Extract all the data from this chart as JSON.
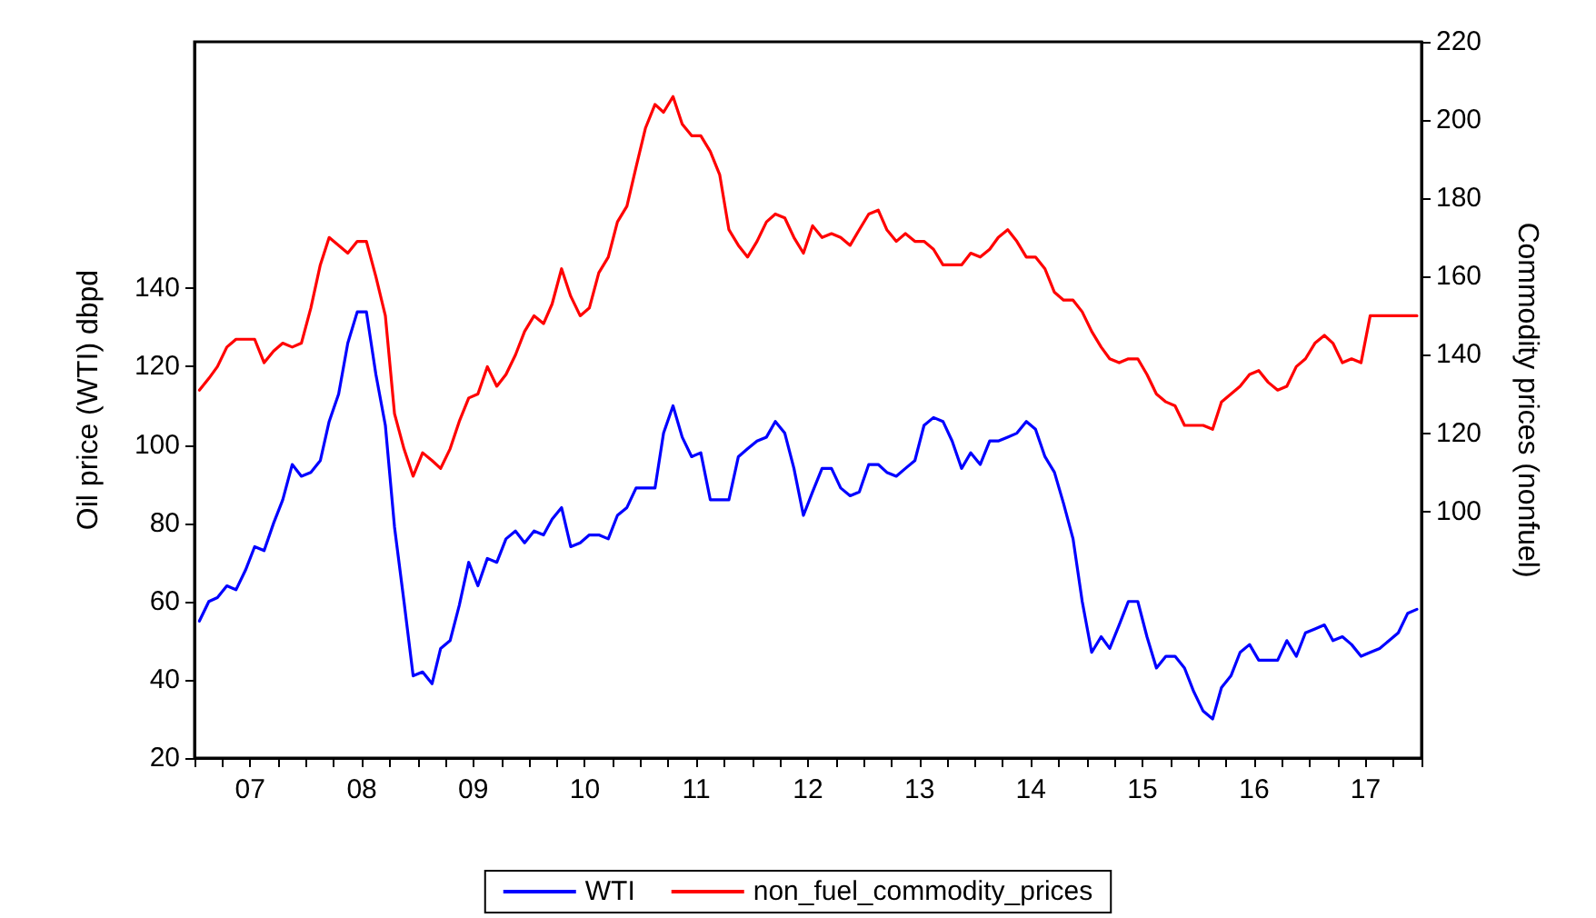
{
  "chart_data": {
    "type": "line",
    "xlabel": null,
    "ylabel": "Oil price (WTI) dbpd",
    "y2label": "Commodity prices (nonfuel)",
    "x": [
      "2007-01",
      "2007-02",
      "2007-03",
      "2007-04",
      "2007-05",
      "2007-06",
      "2007-07",
      "2007-08",
      "2007-09",
      "2007-10",
      "2007-11",
      "2007-12",
      "2008-01",
      "2008-02",
      "2008-03",
      "2008-04",
      "2008-05",
      "2008-06",
      "2008-07",
      "2008-08",
      "2008-09",
      "2008-10",
      "2008-11",
      "2008-12",
      "2009-01",
      "2009-02",
      "2009-03",
      "2009-04",
      "2009-05",
      "2009-06",
      "2009-07",
      "2009-08",
      "2009-09",
      "2009-10",
      "2009-11",
      "2009-12",
      "2010-01",
      "2010-02",
      "2010-03",
      "2010-04",
      "2010-05",
      "2010-06",
      "2010-07",
      "2010-08",
      "2010-09",
      "2010-10",
      "2010-11",
      "2010-12",
      "2011-01",
      "2011-02",
      "2011-03",
      "2011-04",
      "2011-05",
      "2011-06",
      "2011-07",
      "2011-08",
      "2011-09",
      "2011-10",
      "2011-11",
      "2011-12",
      "2012-01",
      "2012-02",
      "2012-03",
      "2012-04",
      "2012-05",
      "2012-06",
      "2012-07",
      "2012-08",
      "2012-09",
      "2012-10",
      "2012-11",
      "2012-12",
      "2013-01",
      "2013-02",
      "2013-03",
      "2013-04",
      "2013-05",
      "2013-06",
      "2013-07",
      "2013-08",
      "2013-09",
      "2013-10",
      "2013-11",
      "2013-12",
      "2014-01",
      "2014-02",
      "2014-03",
      "2014-04",
      "2014-05",
      "2014-06",
      "2014-07",
      "2014-08",
      "2014-09",
      "2014-10",
      "2014-11",
      "2014-12",
      "2015-01",
      "2015-02",
      "2015-03",
      "2015-04",
      "2015-05",
      "2015-06",
      "2015-07",
      "2015-08",
      "2015-09",
      "2015-10",
      "2015-11",
      "2015-12",
      "2016-01",
      "2016-02",
      "2016-03",
      "2016-04",
      "2016-05",
      "2016-06",
      "2016-07",
      "2016-08",
      "2016-09",
      "2016-10",
      "2016-11",
      "2016-12",
      "2017-01",
      "2017-02",
      "2017-03",
      "2017-04",
      "2017-05",
      "2017-06",
      "2017-07",
      "2017-08",
      "2017-09",
      "2017-10",
      "2017-11",
      "2017-12"
    ],
    "series": [
      {
        "name": "WTI",
        "color": "#0000ff",
        "values": [
          55,
          60,
          61,
          64,
          63,
          68,
          74,
          73,
          80,
          86,
          95,
          92,
          93,
          96,
          106,
          113,
          126,
          134,
          134,
          118,
          105,
          79,
          60,
          41,
          42,
          39,
          48,
          50,
          59,
          70,
          64,
          71,
          70,
          76,
          78,
          75,
          78,
          77,
          81,
          84,
          74,
          75,
          77,
          77,
          76,
          82,
          84,
          89,
          89,
          89,
          103,
          110,
          102,
          97,
          98,
          86,
          86,
          86,
          97,
          99,
          101,
          102,
          106,
          103,
          94,
          82,
          88,
          94,
          94,
          89,
          87,
          88,
          95,
          95,
          93,
          92,
          94,
          96,
          105,
          107,
          106,
          101,
          94,
          98,
          95,
          101,
          101,
          102,
          103,
          106,
          104,
          97,
          93,
          85,
          76,
          60,
          47,
          51,
          48,
          54,
          60,
          60,
          51,
          43,
          46,
          46,
          43,
          37,
          32,
          30,
          38,
          41,
          47,
          49,
          45,
          45,
          45,
          50,
          46,
          52,
          53,
          54,
          50,
          51,
          49,
          46,
          47,
          48,
          50,
          52,
          57,
          58
        ]
      },
      {
        "name": "non_fuel_commodity_prices",
        "color": "#ff0000",
        "axis": "y2",
        "values": [
          131,
          134,
          137,
          142,
          144,
          144,
          144,
          138,
          141,
          143,
          142,
          143,
          152,
          163,
          170,
          168,
          166,
          169,
          169,
          160,
          150,
          125,
          116,
          109,
          115,
          113,
          111,
          116,
          123,
          129,
          130,
          137,
          132,
          135,
          140,
          146,
          150,
          148,
          153,
          162,
          155,
          150,
          152,
          161,
          165,
          174,
          178,
          188,
          198,
          204,
          202,
          206,
          199,
          196,
          196,
          192,
          186,
          172,
          168,
          165,
          169,
          174,
          176,
          175,
          170,
          166,
          173,
          170,
          171,
          170,
          168,
          172,
          176,
          177,
          172,
          169,
          171,
          169,
          169,
          167,
          163,
          163,
          163,
          166,
          165,
          167,
          170,
          172,
          169,
          165,
          165,
          162,
          156,
          154,
          154,
          151,
          146,
          142,
          139,
          138,
          139,
          139,
          135,
          130,
          128,
          127,
          122,
          122,
          122,
          121,
          128,
          130,
          132,
          135,
          136,
          133,
          131,
          132,
          137,
          139,
          143,
          145,
          143,
          138,
          139,
          138,
          150,
          150,
          150,
          150,
          150,
          150
        ]
      }
    ],
    "xlim": [
      "2006-12-16",
      "2017-12-16"
    ],
    "xticks": [
      {
        "value": "2006-12-16",
        "label": null
      },
      {
        "value": "2007-03-16",
        "label": null
      },
      {
        "value": "2007-06-16",
        "label": "07"
      },
      {
        "value": "2007-09-16",
        "label": null
      },
      {
        "value": "2007-12-16",
        "label": null
      },
      {
        "value": "2008-03-16",
        "label": null
      },
      {
        "value": "2008-06-16",
        "label": "08"
      },
      {
        "value": "2008-09-16",
        "label": null
      },
      {
        "value": "2008-12-16",
        "label": null
      },
      {
        "value": "2009-03-16",
        "label": null
      },
      {
        "value": "2009-06-16",
        "label": "09"
      },
      {
        "value": "2009-09-16",
        "label": null
      },
      {
        "value": "2009-12-16",
        "label": null
      },
      {
        "value": "2010-03-16",
        "label": null
      },
      {
        "value": "2010-06-16",
        "label": "10"
      },
      {
        "value": "2010-09-16",
        "label": null
      },
      {
        "value": "2010-12-16",
        "label": null
      },
      {
        "value": "2011-03-16",
        "label": null
      },
      {
        "value": "2011-06-16",
        "label": "11"
      },
      {
        "value": "2011-09-16",
        "label": null
      },
      {
        "value": "2011-12-16",
        "label": null
      },
      {
        "value": "2012-03-16",
        "label": null
      },
      {
        "value": "2012-06-16",
        "label": "12"
      },
      {
        "value": "2012-09-16",
        "label": null
      },
      {
        "value": "2012-12-16",
        "label": null
      },
      {
        "value": "2013-03-16",
        "label": null
      },
      {
        "value": "2013-06-16",
        "label": "13"
      },
      {
        "value": "2013-09-16",
        "label": null
      },
      {
        "value": "2013-12-16",
        "label": null
      },
      {
        "value": "2014-03-16",
        "label": null
      },
      {
        "value": "2014-06-16",
        "label": "14"
      },
      {
        "value": "2014-09-16",
        "label": null
      },
      {
        "value": "2014-12-16",
        "label": null
      },
      {
        "value": "2015-03-16",
        "label": null
      },
      {
        "value": "2015-06-16",
        "label": "15"
      },
      {
        "value": "2015-09-16",
        "label": null
      },
      {
        "value": "2015-12-16",
        "label": null
      },
      {
        "value": "2016-03-16",
        "label": null
      },
      {
        "value": "2016-06-16",
        "label": "16"
      },
      {
        "value": "2016-09-16",
        "label": null
      },
      {
        "value": "2016-12-16",
        "label": null
      },
      {
        "value": "2017-03-16",
        "label": null
      },
      {
        "value": "2017-06-16",
        "label": "17"
      },
      {
        "value": "2017-09-16",
        "label": null
      },
      {
        "value": "2017-12-16",
        "label": null
      }
    ],
    "ylim": [
      20,
      203
    ],
    "yticks": [
      20,
      40,
      60,
      80,
      100,
      120,
      140
    ],
    "y2lim": [
      37,
      220
    ],
    "y2ticks": [
      100,
      120,
      140,
      160,
      180,
      200,
      220
    ],
    "grid": false,
    "legend": "bottom",
    "marker": "none",
    "line_style": "solid"
  }
}
